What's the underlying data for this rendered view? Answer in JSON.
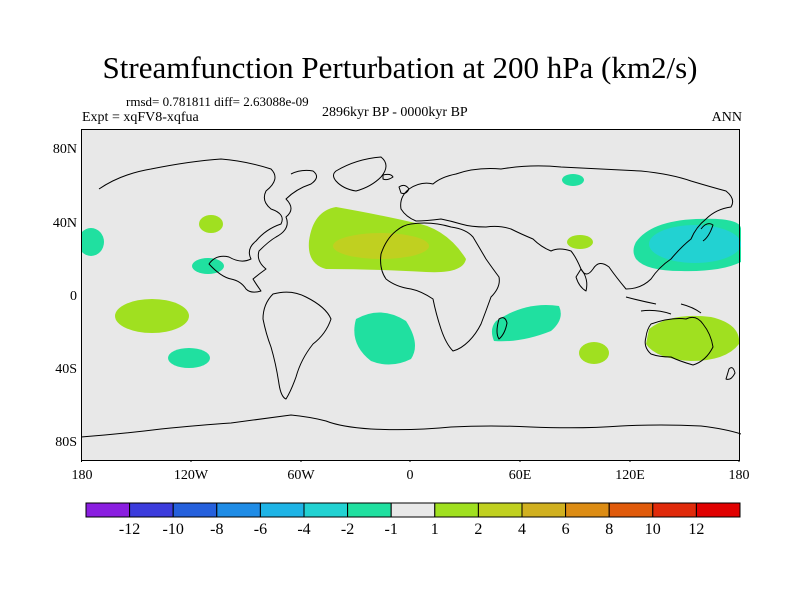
{
  "title": "Streamfunction Perturbation at 200 hPa (km2/s)",
  "stats": "rmsd= 0.781811 diff= 2.63088e-09",
  "experiment": "Expt = xqFV8-xqfua",
  "period": "2896kyr BP - 0000kyr BP",
  "season": "ANN",
  "y_axis": {
    "ticks": [
      "80N",
      "40N",
      "0",
      "40S",
      "80S"
    ]
  },
  "x_axis": {
    "ticks": [
      "180",
      "120W",
      "60W",
      "0",
      "60E",
      "120E",
      "180"
    ]
  },
  "colorbar": {
    "labels": [
      "-12",
      "-10",
      "-8",
      "-6",
      "-4",
      "-2",
      "-1",
      "1",
      "2",
      "4",
      "6",
      "8",
      "10",
      "12"
    ],
    "colors": [
      "#8a1ee0",
      "#3c3cdc",
      "#2560dc",
      "#1f8ce6",
      "#1eb4e6",
      "#22d2d2",
      "#20e0a0",
      "#e8e8e8",
      "#a0e020",
      "#c0d020",
      "#d0b020",
      "#dc8c14",
      "#e05a0a",
      "#e02a0a",
      "#e00000"
    ]
  },
  "colors": {
    "ocean": "#e8e8e8",
    "coast": "#000000",
    "frame": "#000000"
  },
  "map_features": [
    "coastline",
    "contour-anomaly-regions"
  ]
}
